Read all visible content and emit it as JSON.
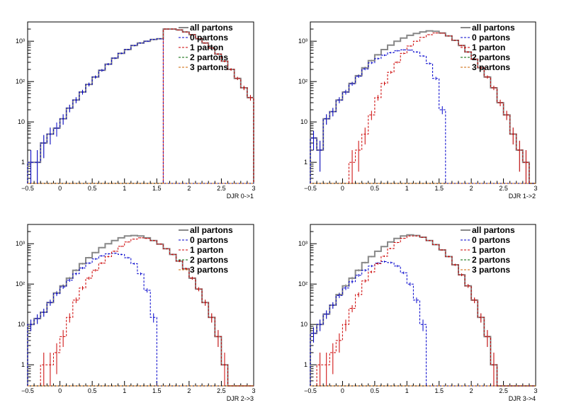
{
  "chart_data": [
    {
      "type": "line",
      "xlabel": "DJR 0->1",
      "xlim": [
        -0.5,
        3
      ],
      "ylim": [
        0.3,
        3000
      ],
      "yscale": "log",
      "x_ticks": [
        "−0.5",
        "0",
        "0.5",
        "1",
        "1.5",
        "2",
        "2.5",
        "3"
      ],
      "y_ticks": [
        "1",
        "10",
        "10²",
        "10³"
      ],
      "legend_position": "top-right",
      "x": [
        -0.45,
        -0.35,
        -0.25,
        -0.15,
        -0.05,
        0.05,
        0.15,
        0.25,
        0.35,
        0.45,
        0.55,
        0.65,
        0.75,
        0.85,
        0.95,
        1.05,
        1.15,
        1.25,
        1.35,
        1.45,
        1.55,
        1.65,
        1.75,
        1.85,
        1.95,
        2.05,
        2.15,
        2.25,
        2.35,
        2.45,
        2.55,
        2.65,
        2.75,
        2.85,
        2.95
      ],
      "series": [
        {
          "name": "all partons",
          "color": "#888888",
          "style": "solid",
          "values": [
            1,
            1,
            3,
            5,
            7,
            12,
            22,
            35,
            55,
            85,
            130,
            190,
            270,
            380,
            500,
            620,
            780,
            900,
            1000,
            1100,
            1150,
            2000,
            2000,
            1900,
            1700,
            1450,
            1150,
            900,
            680,
            480,
            320,
            200,
            120,
            70,
            40
          ]
        },
        {
          "name": "0 partons",
          "color": "#0000cc",
          "style": "dashed",
          "values": [
            1,
            1,
            3,
            5,
            7,
            12,
            22,
            35,
            55,
            85,
            130,
            190,
            270,
            380,
            500,
            620,
            780,
            900,
            1000,
            1100,
            1150,
            0,
            0,
            0,
            0,
            0,
            0,
            0,
            0,
            0,
            0,
            0,
            0,
            0,
            0
          ]
        },
        {
          "name": "1 parton",
          "color": "#cc0000",
          "style": "dashed",
          "values": [
            0,
            0,
            0,
            0,
            0,
            0,
            0,
            0,
            0,
            0,
            0,
            0,
            0,
            0,
            0,
            0,
            0,
            0,
            0,
            0,
            0,
            2000,
            2000,
            1900,
            1700,
            1450,
            1150,
            900,
            680,
            480,
            320,
            200,
            120,
            70,
            40
          ]
        },
        {
          "name": "2 partons",
          "color": "#006600",
          "style": "dashed",
          "values": [
            0,
            0,
            0,
            0,
            0,
            0,
            0,
            0,
            0,
            0,
            0,
            0,
            0,
            0,
            0,
            0,
            0,
            0,
            0,
            0,
            0,
            0,
            0,
            0,
            0,
            0,
            0,
            0,
            0,
            0,
            0,
            0,
            0,
            0,
            0
          ]
        },
        {
          "name": "3 partons",
          "color": "#cc6600",
          "style": "dashed",
          "values": [
            0,
            0,
            0,
            0,
            0,
            0,
            0,
            0,
            0,
            0,
            0,
            0,
            0,
            0,
            0,
            0,
            0,
            0,
            0,
            0,
            0,
            0,
            0,
            0,
            0,
            0,
            0,
            0,
            0,
            0,
            0,
            0,
            0,
            0,
            0
          ]
        }
      ]
    },
    {
      "type": "line",
      "xlabel": "DJR 1->2",
      "xlim": [
        -0.5,
        3
      ],
      "ylim": [
        0.3,
        3000
      ],
      "yscale": "log",
      "x_ticks": [
        "−0.5",
        "0",
        "0.5",
        "1",
        "1.5",
        "2",
        "2.5",
        "3"
      ],
      "y_ticks": [
        "1",
        "10",
        "10²",
        "10³"
      ],
      "legend_position": "top-right",
      "x": [
        -0.45,
        -0.35,
        -0.25,
        -0.15,
        -0.05,
        0.05,
        0.15,
        0.25,
        0.35,
        0.45,
        0.55,
        0.65,
        0.75,
        0.85,
        0.95,
        1.05,
        1.15,
        1.25,
        1.35,
        1.45,
        1.55,
        1.65,
        1.75,
        1.85,
        1.95,
        2.05,
        2.15,
        2.25,
        2.35,
        2.45,
        2.55,
        2.65,
        2.75,
        2.85,
        2.95
      ],
      "series": [
        {
          "name": "all partons",
          "color": "#888888",
          "style": "solid",
          "values": [
            4,
            2,
            12,
            18,
            35,
            55,
            90,
            140,
            220,
            330,
            460,
            620,
            800,
            1000,
            1200,
            1400,
            1550,
            1700,
            1800,
            1750,
            1600,
            1350,
            1050,
            780,
            540,
            360,
            220,
            130,
            70,
            30,
            15,
            5,
            2,
            1,
            0
          ]
        },
        {
          "name": "0 partons",
          "color": "#0000cc",
          "style": "dashed",
          "values": [
            4,
            2,
            12,
            18,
            35,
            55,
            88,
            135,
            205,
            290,
            370,
            450,
            520,
            580,
            610,
            600,
            540,
            430,
            280,
            120,
            20,
            0,
            0,
            0,
            0,
            0,
            0,
            0,
            0,
            0,
            0,
            0,
            0,
            0,
            0
          ]
        },
        {
          "name": "1 parton",
          "color": "#cc0000",
          "style": "dashed",
          "values": [
            0,
            0,
            0,
            0,
            0,
            0,
            1,
            2,
            5,
            15,
            40,
            90,
            170,
            300,
            500,
            760,
            1000,
            1250,
            1450,
            1600,
            1580,
            1350,
            1050,
            780,
            540,
            360,
            220,
            130,
            70,
            30,
            15,
            5,
            2,
            1,
            0
          ]
        },
        {
          "name": "2 partons",
          "color": "#006600",
          "style": "dashed",
          "values": [
            0,
            0,
            0,
            0,
            0,
            0,
            0,
            0,
            0,
            0,
            0,
            0,
            0,
            0,
            0,
            0,
            0,
            0,
            0,
            0,
            0,
            0,
            0,
            0,
            0,
            0,
            0,
            0,
            0,
            0,
            0,
            0,
            0,
            0,
            0
          ]
        },
        {
          "name": "3 partons",
          "color": "#cc6600",
          "style": "dashed",
          "values": [
            0,
            0,
            0,
            0,
            0,
            0,
            0,
            0,
            0,
            0,
            0,
            0,
            0,
            0,
            0,
            0,
            0,
            0,
            0,
            0,
            0,
            0,
            0,
            0,
            0,
            0,
            0,
            0,
            0,
            0,
            0,
            0,
            0,
            0,
            0
          ]
        }
      ]
    },
    {
      "type": "line",
      "xlabel": "DJR 2->3",
      "xlim": [
        -0.5,
        3
      ],
      "ylim": [
        0.3,
        3000
      ],
      "yscale": "log",
      "x_ticks": [
        "−0.5",
        "0",
        "0.5",
        "1",
        "1.5",
        "2",
        "2.5",
        "3"
      ],
      "y_ticks": [
        "1",
        "10",
        "10²",
        "10³"
      ],
      "legend_position": "top-right",
      "x": [
        -0.45,
        -0.35,
        -0.25,
        -0.15,
        -0.05,
        0.05,
        0.15,
        0.25,
        0.35,
        0.45,
        0.55,
        0.65,
        0.75,
        0.85,
        0.95,
        1.05,
        1.15,
        1.25,
        1.35,
        1.45,
        1.55,
        1.65,
        1.75,
        1.85,
        1.95,
        2.05,
        2.15,
        2.25,
        2.35,
        2.45,
        2.55,
        2.65,
        2.75,
        2.85,
        2.95
      ],
      "series": [
        {
          "name": "all partons",
          "color": "#888888",
          "style": "solid",
          "values": [
            10,
            14,
            20,
            35,
            60,
            90,
            140,
            220,
            320,
            450,
            600,
            800,
            1000,
            1200,
            1400,
            1550,
            1600,
            1550,
            1400,
            1200,
            980,
            750,
            540,
            370,
            240,
            140,
            75,
            35,
            15,
            5,
            1,
            0,
            0,
            0,
            0
          ]
        },
        {
          "name": "0 partons",
          "color": "#0000cc",
          "style": "dashed",
          "values": [
            10,
            14,
            20,
            35,
            58,
            85,
            125,
            180,
            250,
            330,
            420,
            500,
            560,
            580,
            540,
            450,
            320,
            180,
            70,
            15,
            0,
            0,
            0,
            0,
            0,
            0,
            0,
            0,
            0,
            0,
            0,
            0,
            0,
            0,
            0
          ]
        },
        {
          "name": "1 parton",
          "color": "#cc0000",
          "style": "dashed",
          "values": [
            0,
            0,
            1,
            1,
            2,
            5,
            15,
            40,
            80,
            140,
            220,
            330,
            480,
            650,
            860,
            1100,
            1300,
            1400,
            1350,
            1200,
            980,
            750,
            540,
            370,
            240,
            140,
            75,
            35,
            15,
            5,
            1,
            0,
            0,
            0,
            0
          ]
        },
        {
          "name": "2 partons",
          "color": "#006600",
          "style": "dashed",
          "values": [
            0,
            0,
            0,
            0,
            0,
            0,
            0,
            0,
            0,
            0,
            0,
            0,
            0,
            0,
            0,
            0,
            0,
            0,
            0,
            0,
            0,
            0,
            0,
            0,
            0,
            0,
            0,
            0,
            0,
            0,
            0,
            0,
            0,
            0,
            0
          ]
        },
        {
          "name": "3 partons",
          "color": "#cc6600",
          "style": "dashed",
          "values": [
            0,
            0,
            0,
            0,
            0,
            0,
            0,
            0,
            0,
            0,
            0,
            0,
            0,
            0,
            0,
            0,
            0,
            0,
            0,
            0,
            0,
            0,
            0,
            0,
            0,
            0,
            0,
            0,
            0,
            0,
            0,
            0,
            0,
            0,
            0
          ]
        }
      ]
    },
    {
      "type": "line",
      "xlabel": "DJR 3->4",
      "xlim": [
        -0.5,
        3
      ],
      "ylim": [
        0.3,
        3000
      ],
      "yscale": "log",
      "x_ticks": [
        "−0.5",
        "0",
        "0.5",
        "1",
        "1.5",
        "2",
        "2.5",
        "3"
      ],
      "y_ticks": [
        "1",
        "10",
        "10²",
        "10³"
      ],
      "legend_position": "top-right",
      "x": [
        -0.45,
        -0.35,
        -0.25,
        -0.15,
        -0.05,
        0.05,
        0.15,
        0.25,
        0.35,
        0.45,
        0.55,
        0.65,
        0.75,
        0.85,
        0.95,
        1.05,
        1.15,
        1.25,
        1.35,
        1.45,
        1.55,
        1.65,
        1.75,
        1.85,
        1.95,
        2.05,
        2.15,
        2.25,
        2.35,
        2.45,
        2.55,
        2.65,
        2.75,
        2.85,
        2.95
      ],
      "series": [
        {
          "name": "all partons",
          "color": "#888888",
          "style": "solid",
          "values": [
            6,
            10,
            18,
            30,
            55,
            90,
            140,
            220,
            340,
            480,
            650,
            850,
            1100,
            1350,
            1550,
            1650,
            1600,
            1450,
            1200,
            950,
            700,
            480,
            300,
            170,
            90,
            40,
            15,
            5,
            1,
            0,
            0,
            0,
            0,
            0,
            0
          ]
        },
        {
          "name": "0 partons",
          "color": "#0000cc",
          "style": "dashed",
          "values": [
            6,
            10,
            18,
            30,
            52,
            80,
            115,
            165,
            220,
            280,
            330,
            360,
            340,
            280,
            190,
            100,
            40,
            10,
            0,
            0,
            0,
            0,
            0,
            0,
            0,
            0,
            0,
            0,
            0,
            0,
            0,
            0,
            0,
            0,
            0
          ]
        },
        {
          "name": "1 parton",
          "color": "#cc0000",
          "style": "dashed",
          "values": [
            0,
            1,
            1,
            2,
            4,
            10,
            25,
            55,
            120,
            200,
            320,
            490,
            760,
            1070,
            1360,
            1550,
            1560,
            1440,
            1200,
            950,
            700,
            480,
            300,
            170,
            90,
            40,
            15,
            5,
            1,
            0,
            0,
            0,
            0,
            0,
            0
          ]
        },
        {
          "name": "2 partons",
          "color": "#006600",
          "style": "dashed",
          "values": [
            0,
            0,
            0,
            0,
            0,
            0,
            0,
            0,
            0,
            0,
            0,
            0,
            0,
            0,
            0,
            0,
            0,
            0,
            0,
            0,
            0,
            0,
            0,
            0,
            0,
            0,
            0,
            0,
            0,
            0,
            0,
            0,
            0,
            0,
            0
          ]
        },
        {
          "name": "3 partons",
          "color": "#cc6600",
          "style": "dashed",
          "values": [
            0,
            0,
            0,
            0,
            0,
            0,
            0,
            0,
            0,
            0,
            0,
            0,
            0,
            0,
            0,
            0,
            0,
            0,
            0,
            0,
            0,
            0,
            0,
            0,
            0,
            0,
            0,
            0,
            0,
            0,
            0,
            0,
            0,
            0,
            0
          ]
        }
      ]
    }
  ]
}
